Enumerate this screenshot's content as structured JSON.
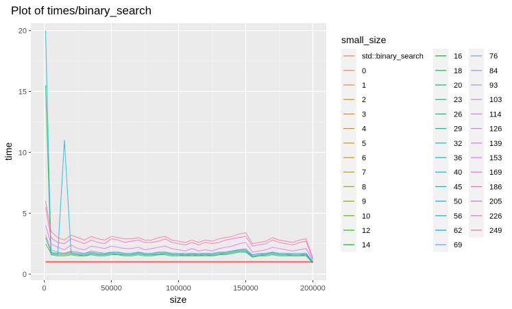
{
  "chart_data": {
    "type": "line",
    "title": "Plot of times/binary_search",
    "xlabel": "size",
    "ylabel": "time",
    "xlim": [
      -10000,
      210000
    ],
    "ylim": [
      -0.5,
      20.6
    ],
    "x_ticks": [
      0,
      50000,
      100000,
      150000,
      200000
    ],
    "x_tick_labels": [
      "0",
      "50000",
      "100000",
      "150000",
      "200000"
    ],
    "y_ticks": [
      0,
      5,
      10,
      15,
      20
    ],
    "y_tick_labels": [
      "0",
      "5",
      "10",
      "15",
      "20"
    ],
    "grid": true,
    "legend": {
      "title": "small_size",
      "position": "right",
      "columns": [
        [
          "std::binary_search",
          "0",
          "1",
          "2",
          "3",
          "4",
          "5",
          "6",
          "7",
          "8",
          "9",
          "10",
          "12",
          "14"
        ],
        [
          "16",
          "18",
          "20",
          "23",
          "26",
          "29",
          "32",
          "36",
          "40",
          "45",
          "50",
          "56",
          "62",
          "69"
        ],
        [
          "76",
          "84",
          "93",
          "103",
          "114",
          "126",
          "139",
          "153",
          "169",
          "186",
          "205",
          "226",
          "249"
        ]
      ]
    },
    "x": [
      1000,
      5000,
      10000,
      15000,
      20000,
      25000,
      30000,
      35000,
      40000,
      45000,
      50000,
      55000,
      60000,
      65000,
      70000,
      75000,
      80000,
      85000,
      90000,
      95000,
      100000,
      105000,
      110000,
      115000,
      120000,
      125000,
      130000,
      135000,
      140000,
      145000,
      150000,
      155000,
      160000,
      165000,
      170000,
      175000,
      180000,
      185000,
      190000,
      195000,
      200000
    ],
    "series": [
      {
        "name": "std::binary_search",
        "color": "#F8766D",
        "values": [
          1.0,
          1.0,
          1.0,
          1.0,
          1.0,
          1.0,
          1.0,
          1.0,
          1.0,
          1.0,
          1.0,
          1.0,
          1.0,
          1.0,
          1.0,
          1.0,
          1.0,
          1.0,
          1.0,
          1.0,
          1.0,
          1.0,
          1.0,
          1.0,
          1.0,
          1.0,
          1.0,
          1.0,
          1.0,
          1.0,
          1.0,
          1.0,
          1.0,
          1.0,
          1.0,
          1.0,
          1.0,
          1.0,
          1.0,
          1.0,
          1.0
        ]
      },
      {
        "name": "0",
        "color": "#F37B59",
        "values": [
          3.2,
          2.0,
          1.8,
          1.7,
          1.9,
          1.8,
          1.7,
          1.9,
          1.8,
          1.7,
          1.8,
          1.8,
          1.7,
          1.7,
          1.8,
          1.7,
          1.7,
          1.8,
          1.8,
          1.7,
          1.7,
          1.6,
          1.7,
          1.6,
          1.7,
          1.6,
          1.7,
          1.8,
          1.9,
          2.0,
          2.1,
          1.5,
          1.6,
          1.7,
          1.8,
          1.7,
          1.7,
          1.6,
          1.6,
          1.7,
          1.0
        ]
      },
      {
        "name": "10",
        "color": "#6BB100",
        "values": [
          2.5,
          1.7,
          1.6,
          1.6,
          1.7,
          1.6,
          1.5,
          1.7,
          1.6,
          1.6,
          1.7,
          1.6,
          1.6,
          1.6,
          1.7,
          1.6,
          1.6,
          1.6,
          1.7,
          1.6,
          1.6,
          1.5,
          1.6,
          1.5,
          1.6,
          1.5,
          1.6,
          1.7,
          1.8,
          1.9,
          1.9,
          1.4,
          1.5,
          1.6,
          1.7,
          1.6,
          1.6,
          1.5,
          1.5,
          1.6,
          1.0
        ]
      },
      {
        "name": "18",
        "color": "#00BA38",
        "values": [
          15.5,
          1.6,
          1.5,
          1.5,
          1.6,
          1.5,
          1.5,
          1.6,
          1.5,
          1.5,
          1.6,
          1.6,
          1.5,
          1.5,
          1.6,
          1.5,
          1.5,
          1.6,
          1.6,
          1.5,
          1.5,
          1.5,
          1.5,
          1.5,
          1.5,
          1.5,
          1.6,
          1.6,
          1.7,
          1.8,
          1.8,
          1.4,
          1.5,
          1.5,
          1.6,
          1.5,
          1.5,
          1.5,
          1.5,
          1.5,
          0.9
        ]
      },
      {
        "name": "40",
        "color": "#00B9E3",
        "values": [
          20.0,
          1.7,
          1.6,
          11.0,
          1.7,
          1.6,
          1.6,
          1.7,
          1.6,
          1.6,
          1.7,
          1.7,
          1.6,
          1.6,
          1.7,
          1.6,
          1.6,
          1.7,
          1.7,
          1.6,
          1.6,
          1.6,
          1.6,
          1.6,
          1.6,
          1.6,
          1.7,
          1.7,
          1.8,
          1.9,
          1.9,
          1.5,
          1.6,
          1.6,
          1.7,
          1.6,
          1.6,
          1.6,
          1.6,
          1.6,
          1.0
        ]
      },
      {
        "name": "62",
        "color": "#00A9FF",
        "values": [
          3.0,
          1.8,
          1.7,
          1.7,
          1.8,
          1.7,
          1.7,
          1.8,
          1.7,
          1.7,
          1.8,
          1.8,
          1.7,
          1.7,
          1.8,
          1.7,
          1.7,
          1.8,
          1.8,
          1.7,
          1.7,
          1.7,
          1.7,
          1.7,
          1.7,
          1.7,
          1.8,
          1.8,
          1.9,
          2.0,
          2.0,
          1.6,
          1.7,
          1.7,
          1.8,
          1.7,
          1.7,
          1.7,
          1.7,
          1.7,
          1.0
        ]
      },
      {
        "name": "139",
        "color": "#E76BF3",
        "values": [
          4.0,
          2.5,
          2.2,
          2.0,
          2.4,
          2.1,
          2.0,
          2.3,
          2.2,
          2.1,
          2.3,
          2.2,
          2.1,
          2.1,
          2.2,
          2.0,
          2.1,
          2.2,
          2.3,
          2.1,
          2.0,
          1.9,
          2.1,
          1.9,
          2.0,
          1.9,
          2.1,
          2.2,
          2.3,
          2.5,
          2.6,
          1.8,
          1.9,
          2.0,
          2.2,
          2.1,
          2.0,
          1.9,
          2.0,
          2.1,
          1.1
        ]
      },
      {
        "name": "205",
        "color": "#FF62BC",
        "values": [
          5.5,
          3.0,
          2.6,
          2.5,
          2.9,
          2.7,
          2.5,
          2.8,
          2.6,
          2.5,
          2.9,
          2.8,
          2.6,
          2.7,
          2.8,
          2.6,
          2.6,
          2.7,
          2.9,
          2.6,
          2.5,
          2.4,
          2.6,
          2.4,
          2.6,
          2.5,
          2.6,
          2.8,
          2.9,
          3.0,
          3.1,
          2.3,
          2.4,
          2.5,
          2.8,
          2.6,
          2.5,
          2.4,
          2.6,
          2.7,
          1.2
        ]
      },
      {
        "name": "249",
        "color": "#FF6C91",
        "values": [
          6.0,
          3.5,
          3.0,
          2.8,
          3.2,
          3.0,
          2.8,
          3.1,
          2.9,
          2.8,
          3.1,
          3.0,
          2.9,
          2.9,
          3.0,
          2.8,
          2.8,
          3.0,
          3.1,
          2.8,
          2.7,
          2.6,
          2.8,
          2.6,
          2.8,
          2.7,
          2.9,
          3.0,
          3.1,
          3.3,
          3.4,
          2.5,
          2.6,
          2.7,
          3.0,
          2.8,
          2.7,
          2.6,
          2.8,
          2.9,
          1.3
        ]
      }
    ],
    "legend_colors": {
      "std::binary_search": "#F8766D",
      "0": "#F37B59",
      "1": "#ED813E",
      "2": "#E58700",
      "3": "#DE8C00",
      "4": "#D39200",
      "5": "#C99800",
      "6": "#BB9D00",
      "7": "#ADA200",
      "8": "#9CA700",
      "9": "#85AD00",
      "10": "#6BB100",
      "12": "#3DB600",
      "14": "#00B81F",
      "16": "#00BA38",
      "18": "#00BC50",
      "20": "#00BE67",
      "23": "#00BF7D",
      "26": "#00C091",
      "29": "#00C0A5",
      "32": "#00C0B8",
      "36": "#00BEC9",
      "40": "#00BCD8",
      "45": "#00B8E5",
      "50": "#00B4F0",
      "56": "#00AEFA",
      "62": "#00A7FF",
      "69": "#619CFF",
      "76": "#7F96FF",
      "84": "#9590FF",
      "93": "#A58AFF",
      "103": "#BB81FF",
      "114": "#CB79FF",
      "126": "#DB72FB",
      "139": "#E76BF3",
      "153": "#F166E8",
      "169": "#F963DB",
      "186": "#FD61D1",
      "205": "#FF62BC",
      "226": "#FF65AC",
      "249": "#FF6C91"
    }
  }
}
